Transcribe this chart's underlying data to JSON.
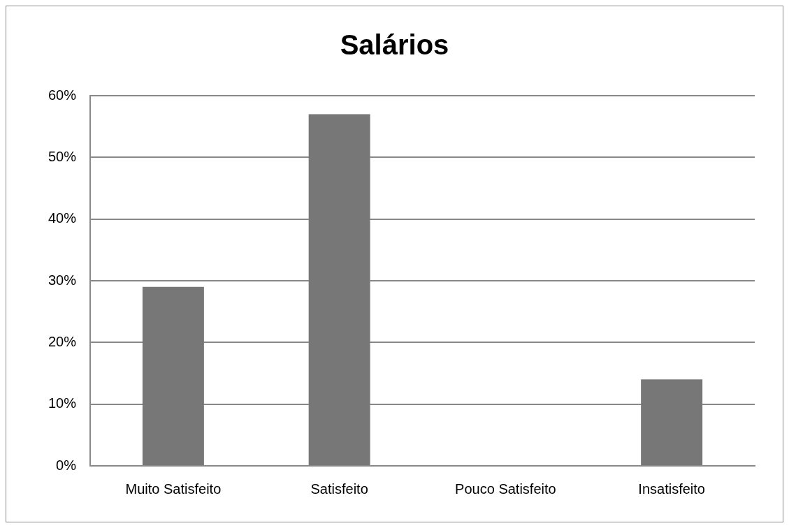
{
  "chart_data": {
    "type": "bar",
    "title": "Salários",
    "categories": [
      "Muito Satisfeito",
      "Satisfeito",
      "Pouco Satisfeito",
      "Insatisfeito"
    ],
    "values": [
      29,
      57,
      0,
      14
    ],
    "color": "#777777",
    "ylim": [
      0,
      60
    ],
    "yticks": [
      {
        "value": 0,
        "label": "0%"
      },
      {
        "value": 10,
        "label": "10%"
      },
      {
        "value": 20,
        "label": "20%"
      },
      {
        "value": 30,
        "label": "30%"
      },
      {
        "value": 40,
        "label": "40%"
      },
      {
        "value": 50,
        "label": "50%"
      },
      {
        "value": 60,
        "label": "60%"
      }
    ],
    "grid": "y"
  }
}
